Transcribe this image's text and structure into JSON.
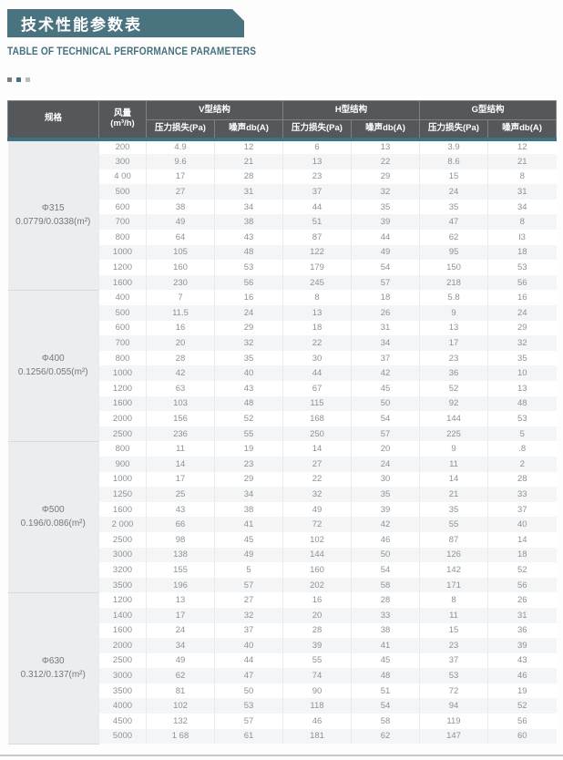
{
  "page": {
    "title_cn": "技术性能参数表",
    "title_en": "TABLE OF TECHNICAL PERFORMANCE PARAMETERS"
  },
  "colors": {
    "banner_teal": "#4a7380",
    "accent_teal": "#45717f",
    "header_bg": "#54585b",
    "teal_strip": "#3f7282",
    "spec_col_bg": "#ebedee",
    "stripe_row": "#f3f5f6",
    "deco_square_1": "#7b7f82",
    "deco_square_2": "#45717f",
    "deco_square_3": "#babdbf"
  },
  "table": {
    "headers": {
      "spec": "规格",
      "flow_line1": "风量",
      "flow_line2": "(m³/h)",
      "groups": [
        "V型结构",
        "H型结构",
        "G型结构"
      ],
      "sub": [
        "压力损失(Pa)",
        "噪声db(A)"
      ]
    },
    "groups": [
      {
        "spec_line1": "Φ315",
        "spec_line2": "0.0779/0.0338(m²)",
        "rows": [
          [
            "200",
            "4.9",
            "12",
            "6",
            "13",
            "3.9",
            "12"
          ],
          [
            "300",
            "9.6",
            "21",
            "13",
            "22",
            "8.6",
            "21"
          ],
          [
            "4 00",
            "17",
            "28",
            "23",
            "29",
            "15",
            "8"
          ],
          [
            "500",
            "27",
            "31",
            "37",
            "32",
            "24",
            "31"
          ],
          [
            "600",
            "38",
            "34",
            "44",
            "35",
            "35",
            "34"
          ],
          [
            "700",
            "49",
            "38",
            "51",
            "39",
            "47",
            "8"
          ],
          [
            "800",
            "64",
            "43",
            "87",
            "44",
            "62",
            "l3"
          ],
          [
            "1000",
            "105",
            "48",
            "122",
            "49",
            "95",
            "18"
          ],
          [
            "1200",
            "160",
            "53",
            "179",
            "54",
            "150",
            "53"
          ],
          [
            "1600",
            "230",
            "56",
            "245",
            "57",
            "218",
            "56"
          ]
        ]
      },
      {
        "spec_line1": "Φ400",
        "spec_line2": "0.1256/0.055(m²)",
        "rows": [
          [
            "400",
            "7",
            "16",
            "8",
            "18",
            "5.8",
            "16"
          ],
          [
            "500",
            "11.5",
            "24",
            "13",
            "26",
            "9",
            "24"
          ],
          [
            "600",
            "16",
            "29",
            "18",
            "31",
            "13",
            "29"
          ],
          [
            "700",
            "20",
            "32",
            "22",
            "34",
            "17",
            "32"
          ],
          [
            "800",
            "28",
            "35",
            "30",
            "37",
            "23",
            "35"
          ],
          [
            "1000",
            "42",
            "40",
            "44",
            "42",
            "36",
            "10"
          ],
          [
            "1200",
            "63",
            "43",
            "67",
            "45",
            "52",
            "13"
          ],
          [
            "1600",
            "103",
            "48",
            "115",
            "50",
            "92",
            "48"
          ],
          [
            "2000",
            "156",
            "52",
            "168",
            "54",
            "144",
            "53"
          ],
          [
            "2500",
            "236",
            "55",
            "250",
            "57",
            "225",
            "5"
          ]
        ]
      },
      {
        "spec_line1": "Φ500",
        "spec_line2": "0.196/0.086(m²)",
        "rows": [
          [
            "800",
            "11",
            "19",
            "14",
            "20",
            "9",
            ".8"
          ],
          [
            "900",
            "14",
            "23",
            "27",
            "24",
            "11",
            "2"
          ],
          [
            "1000",
            "17",
            "29",
            "22",
            "30",
            "14",
            "28"
          ],
          [
            "1250",
            "25",
            "34",
            "32",
            "35",
            "21",
            "33"
          ],
          [
            "1600",
            "43",
            "38",
            "49",
            "39",
            "35",
            "37"
          ],
          [
            "2 000",
            "66",
            "41",
            "72",
            "42",
            "55",
            "40"
          ],
          [
            "2500",
            "98",
            "45",
            "102",
            "46",
            "87",
            "14"
          ],
          [
            "3000",
            "138",
            "49",
            "144",
            "50",
            "126",
            "18"
          ],
          [
            "3200",
            "155",
            "5",
            "160",
            "54",
            "142",
            "52"
          ],
          [
            "3500",
            "196",
            "57",
            "202",
            "58",
            "171",
            "56"
          ]
        ]
      },
      {
        "spec_line1": "Φ630",
        "spec_line2": "0.312/0.137(m²)",
        "rows": [
          [
            "1200",
            "13",
            "27",
            "16",
            "28",
            "8",
            "26"
          ],
          [
            "1400",
            "17",
            "32",
            "20",
            "33",
            "11",
            "31"
          ],
          [
            "1600",
            "24",
            "37",
            "28",
            "38",
            "15",
            "36"
          ],
          [
            "2000",
            "34",
            "40",
            "39",
            "41",
            "23",
            "39"
          ],
          [
            "2500",
            "49",
            "44",
            "55",
            "45",
            "37",
            "43"
          ],
          [
            "3000",
            "62",
            "47",
            "74",
            "48",
            "53",
            "46"
          ],
          [
            "3500",
            "81",
            "50",
            "90",
            "51",
            "72",
            "19"
          ],
          [
            "4000",
            "102",
            "53",
            "118",
            "54",
            "94",
            "52"
          ],
          [
            "4500",
            "132",
            "57",
            "46",
            "58",
            "119",
            "56"
          ],
          [
            "5000",
            "1 68",
            "61",
            "181",
            "62",
            "147",
            "60"
          ]
        ]
      }
    ]
  }
}
